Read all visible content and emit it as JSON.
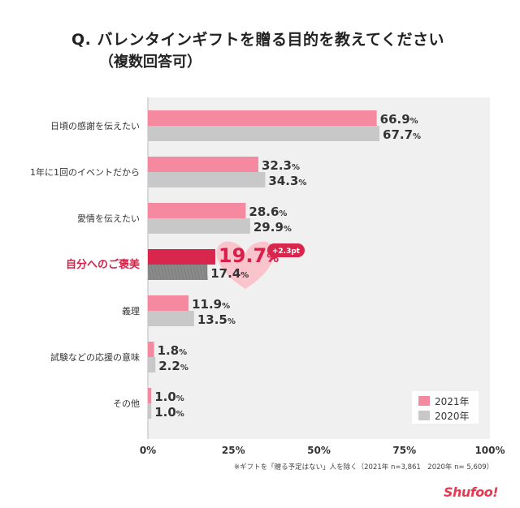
{
  "header": {
    "title": "Q. バレンタインギフトを贈る目的を教えてください",
    "subtitle": "（複数回答可）"
  },
  "chart_data": {
    "type": "bar",
    "orientation": "horizontal",
    "title": "Q. バレンタインギフトを贈る目的を教えてください（複数回答可）",
    "categories": [
      "日頃の感謝を伝えたい",
      "1年に1回のイベントだから",
      "愛情を伝えたい",
      "自分へのご褒美",
      "義理",
      "試験などの応援の意味",
      "その他"
    ],
    "series": [
      {
        "name": "2021年",
        "values": [
          66.9,
          32.3,
          28.6,
          19.7,
          11.9,
          1.8,
          1.0
        ],
        "color": "#f4899f"
      },
      {
        "name": "2020年",
        "values": [
          67.7,
          34.3,
          29.9,
          17.4,
          13.5,
          2.2,
          1.0
        ],
        "color": "#c8c8c8"
      }
    ],
    "highlight": {
      "category": "自分へのご褒美",
      "color_2021": "#d8264c",
      "color_2020": "#8a8a8a",
      "text_color": "#d8204a",
      "badge": "+2.3pt",
      "badge_color": "#d8264c",
      "heart_color": "#f9c4cc"
    },
    "value_labels": [
      [
        "66.9%",
        "67.7%"
      ],
      [
        "32.3%",
        "34.3%"
      ],
      [
        "28.6%",
        "29.9%"
      ],
      [
        "19.7%",
        "17.4%"
      ],
      [
        "11.9%",
        "13.5%"
      ],
      [
        "1.8%",
        "2.2%"
      ],
      [
        "1.0%",
        "1.0%"
      ]
    ],
    "xlim": [
      0,
      100
    ],
    "xticks": [
      "0%",
      "25%",
      "50%",
      "75%",
      "100%"
    ],
    "plot_background": "#f0f0f0",
    "legend": {
      "position": "bottom-right",
      "entries": [
        "2021年",
        "2020年"
      ]
    }
  },
  "footnote": "※ギフトを「贈る予定はない」人を除く（2021年 n=3,861　2020年 n= 5,609）",
  "logo": "Shufoo!"
}
